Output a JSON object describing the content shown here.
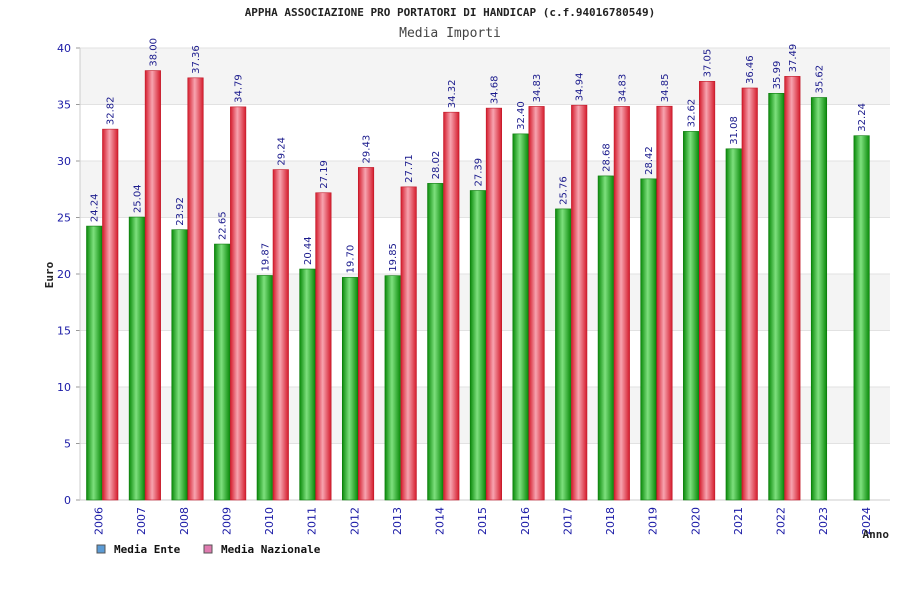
{
  "chart_data": {
    "type": "bar",
    "title": "APPHA ASSOCIAZIONE PRO PORTATORI DI HANDICAP (c.f.94016780549)",
    "subtitle": "Media Importi",
    "xlabel": "Anno",
    "ylabel": "Euro",
    "ylim": [
      0,
      40
    ],
    "yticks": [
      0,
      5,
      10,
      15,
      20,
      25,
      30,
      35,
      40
    ],
    "grid": true,
    "legend_position": "bottom-left",
    "categories": [
      "2006",
      "2007",
      "2008",
      "2009",
      "2010",
      "2011",
      "2012",
      "2013",
      "2014",
      "2015",
      "2016",
      "2017",
      "2018",
      "2019",
      "2020",
      "2021",
      "2022",
      "2023",
      "2024"
    ],
    "series": [
      {
        "name": "Media Ente",
        "legend_color": "#5b9bd5",
        "bar_color": "#18b318",
        "values": [
          24.24,
          25.04,
          23.92,
          22.65,
          19.87,
          20.44,
          19.7,
          19.85,
          28.02,
          27.39,
          32.4,
          25.76,
          28.68,
          28.42,
          32.62,
          31.08,
          35.99,
          35.62,
          32.24
        ],
        "labels": [
          "24.24",
          "25.04",
          "23.92",
          "22.65",
          "19.87",
          "20.44",
          "19.70",
          "19.85",
          "28.02",
          "27.39",
          "32.40",
          "25.76",
          "28.68",
          "28.42",
          "32.62",
          "31.08",
          "35.99",
          "35.62",
          "32.24"
        ]
      },
      {
        "name": "Media Nazionale",
        "legend_color": "#e07bb0",
        "bar_color": "#ee3344",
        "values": [
          32.82,
          38.0,
          37.36,
          34.79,
          29.24,
          27.19,
          29.43,
          27.71,
          34.32,
          34.68,
          34.83,
          34.94,
          34.83,
          34.85,
          37.05,
          36.46,
          37.49,
          null,
          null
        ],
        "labels": [
          "32.82",
          "38.00",
          "37.36",
          "34.79",
          "29.24",
          "27.19",
          "29.43",
          "27.71",
          "34.32",
          "34.68",
          "34.83",
          "34.94",
          "34.83",
          "34.85",
          "37.05",
          "36.46",
          "37.49",
          null,
          null
        ]
      }
    ]
  }
}
